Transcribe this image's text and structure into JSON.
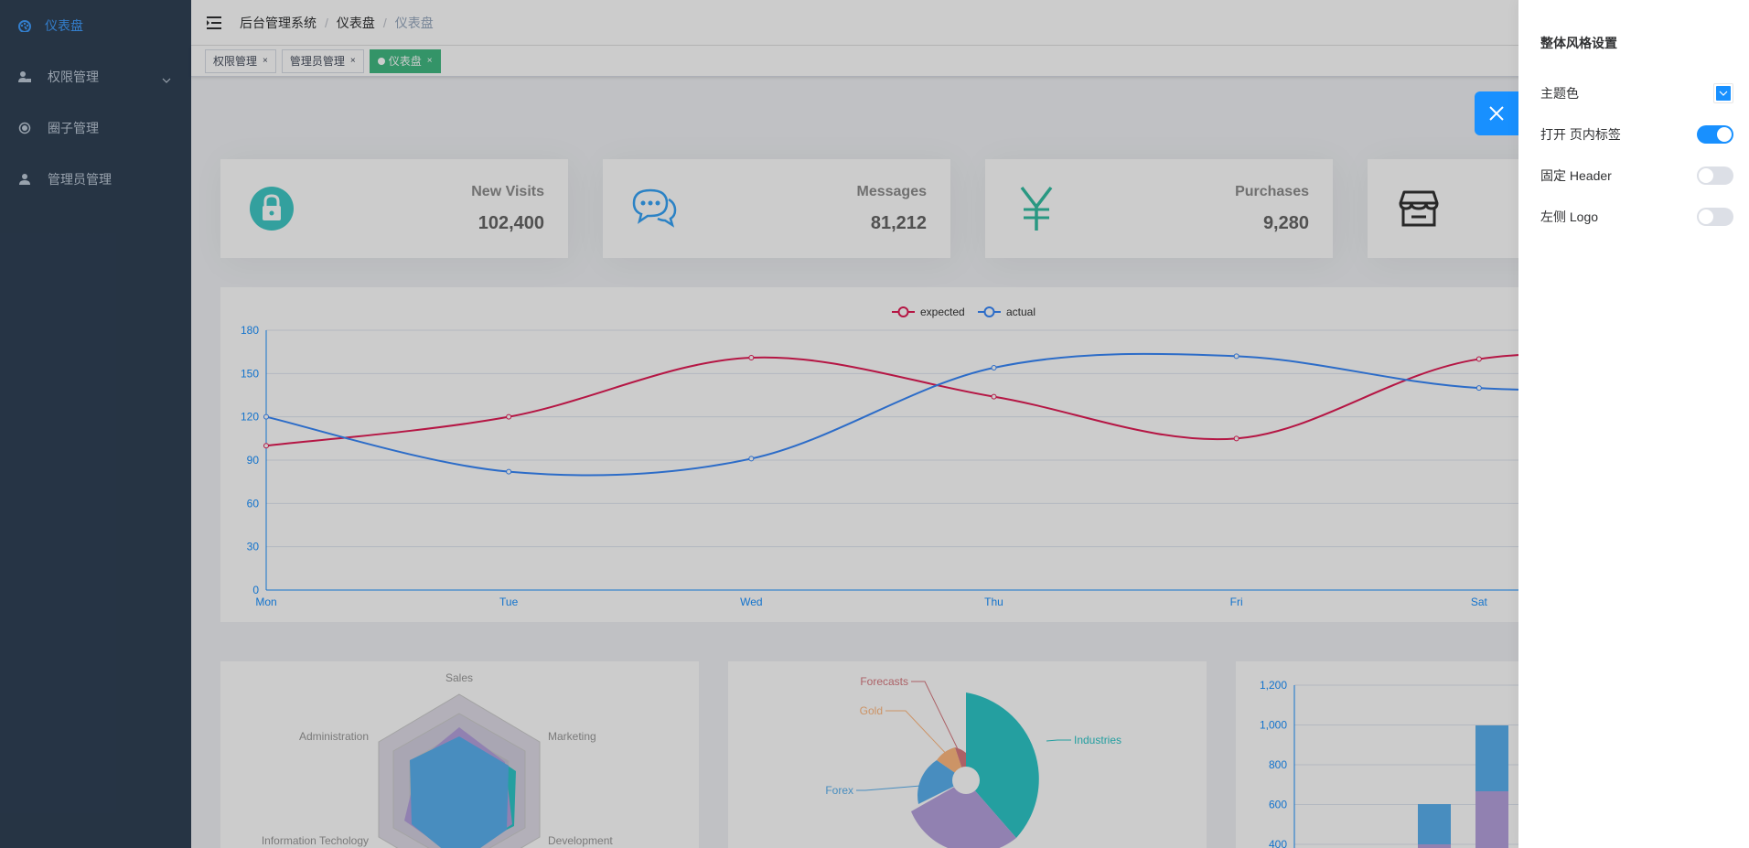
{
  "sidebar": {
    "items": [
      {
        "label": "仪表盘",
        "icon": "dashboard-icon",
        "active": true
      },
      {
        "label": "权限管理",
        "icon": "user-lock-icon",
        "has_submenu": true
      },
      {
        "label": "圈子管理",
        "icon": "circle-icon"
      },
      {
        "label": "管理员管理",
        "icon": "user-icon"
      }
    ]
  },
  "navbar": {
    "breadcrumb": [
      "后台管理系统",
      "仪表盘",
      "仪表盘"
    ]
  },
  "tags": [
    {
      "label": "权限管理",
      "close": "×"
    },
    {
      "label": "管理员管理",
      "close": "×"
    },
    {
      "label": "仪表盘",
      "close": "×",
      "active": true
    }
  ],
  "panels": [
    {
      "label": "New Visits",
      "value": "102,400",
      "icon": "lock-icon",
      "color": "#40c9c6"
    },
    {
      "label": "Messages",
      "value": "81,212",
      "icon": "message-icon",
      "color": "#36a3f7"
    },
    {
      "label": "Purchases",
      "value": "9,280",
      "icon": "yen-icon",
      "color": "#34bfa3"
    },
    {
      "label": "",
      "value": "",
      "icon": "shop-icon",
      "color": "#333333"
    }
  ],
  "chart_data": [
    {
      "type": "line",
      "x": [
        "Mon",
        "Tue",
        "Wed",
        "Thu",
        "Fri",
        "Sat"
      ],
      "series": [
        {
          "name": "expected",
          "values": [
            100,
            120,
            161,
            134,
            105,
            160
          ],
          "color": "#e31c56"
        },
        {
          "name": "actual",
          "values": [
            120,
            82,
            91,
            154,
            162,
            140
          ],
          "color": "#3888fa"
        }
      ],
      "ylim": [
        0,
        180
      ],
      "yticks": [
        0,
        30,
        60,
        90,
        120,
        150,
        180
      ],
      "legend": "top-center"
    },
    {
      "type": "radar",
      "indicators": [
        "Sales",
        "Marketing",
        "Development",
        "Information Techology",
        "Administration"
      ]
    },
    {
      "type": "pie",
      "labels": [
        "Industries",
        "Forecasts",
        "Gold",
        "Forex"
      ],
      "colors": [
        "#2ec7c9",
        "#d87a80",
        "#ffb980",
        "#5ab1ef",
        "#b6a2de"
      ]
    },
    {
      "type": "bar",
      "yticks": [
        400,
        600,
        800,
        1000,
        1200
      ]
    }
  ],
  "settings": {
    "title": "整体风格设置",
    "theme_label": "主题色",
    "theme_color": "#1890ff",
    "tags_label": "打开 页内标签",
    "tags_on": true,
    "fixed_header_label": "固定 Header",
    "fixed_header_on": false,
    "logo_label": "左侧 Logo",
    "logo_on": false
  }
}
